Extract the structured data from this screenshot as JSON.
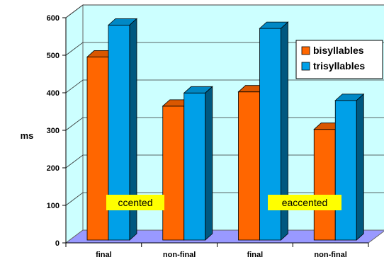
{
  "chart_data": {
    "type": "bar",
    "categories": [
      "final",
      "non-final",
      "final",
      "non-final"
    ],
    "series": [
      {
        "name": "bisyllables",
        "values": [
          503,
          372,
          410,
          310
        ],
        "color": "#ff6600"
      },
      {
        "name": "trisyllables",
        "values": [
          588,
          407,
          579,
          387
        ],
        "color": "#00a0e8"
      }
    ],
    "ylabel": "ms",
    "ylim": [
      0,
      600
    ],
    "yticks": [
      0,
      100,
      200,
      300,
      400,
      500,
      600
    ],
    "grid": true,
    "legend": "top-right",
    "annotations": [
      "ccented",
      "eaccented"
    ],
    "colors": {
      "wall": "#ccffff",
      "floor": "#9999ff",
      "label_box": "#ffff00"
    }
  }
}
